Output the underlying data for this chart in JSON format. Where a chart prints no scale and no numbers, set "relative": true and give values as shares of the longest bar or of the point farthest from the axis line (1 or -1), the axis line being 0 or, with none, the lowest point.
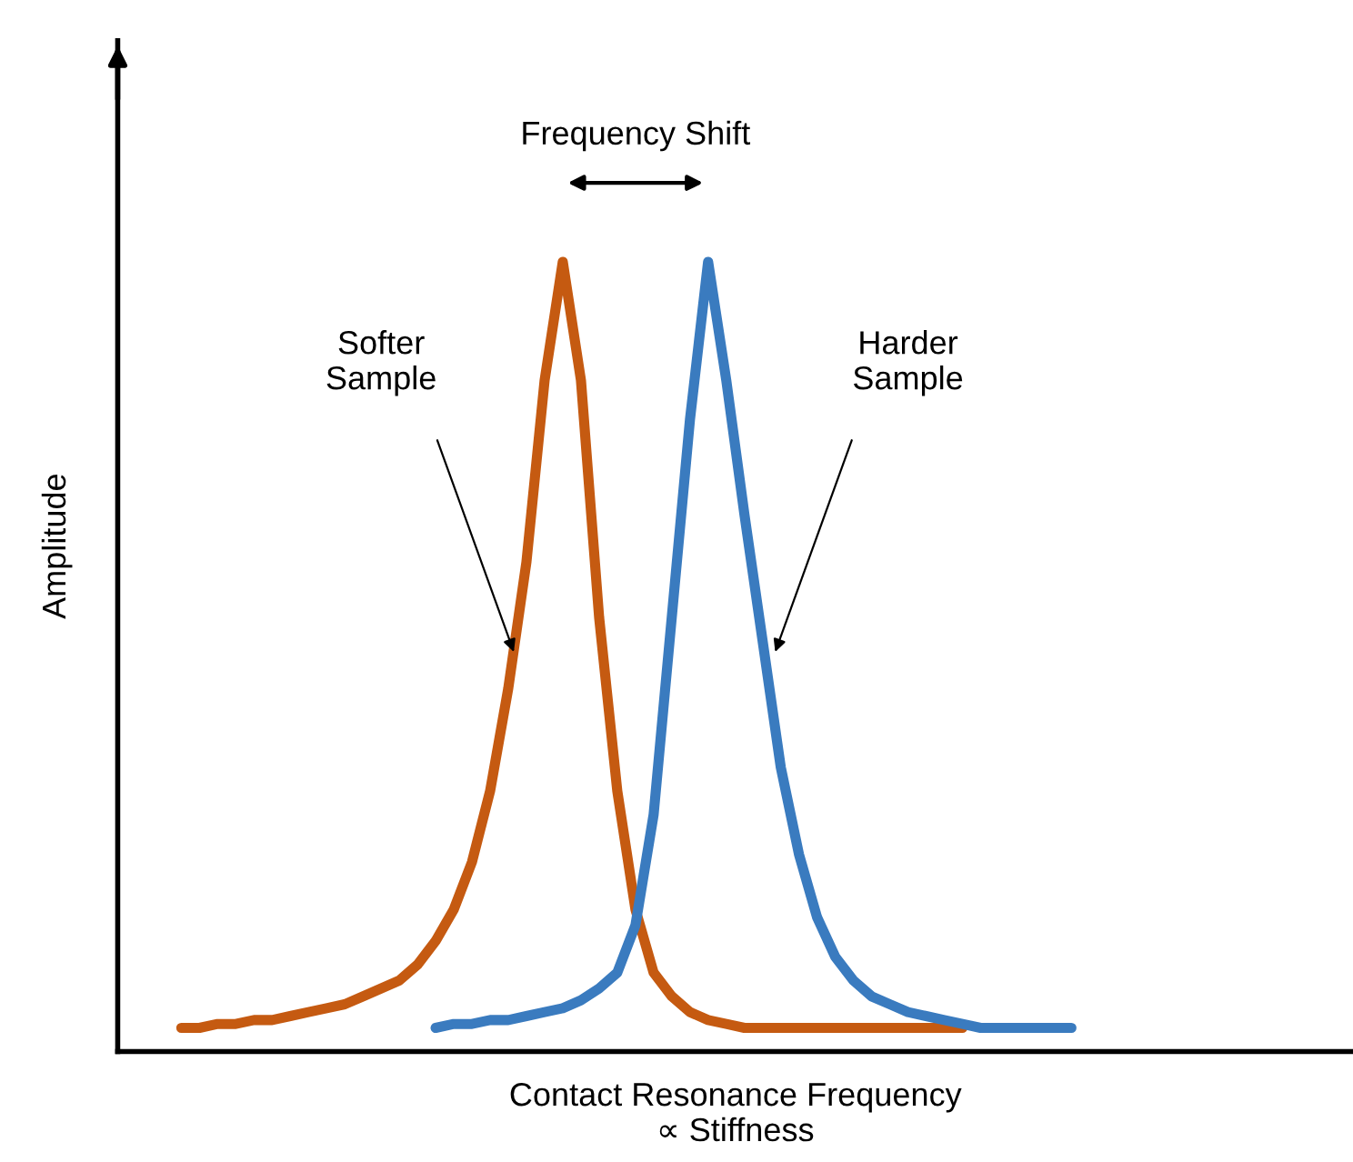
{
  "chart_data": {
    "type": "line",
    "relative": true,
    "xlabel": "Contact Resonance Frequency\n∝ Stiffness",
    "ylabel": "Amplitude",
    "categories": [
      null,
      null,
      null,
      null,
      null,
      null,
      null,
      null,
      null,
      null,
      null,
      null,
      null,
      null,
      null,
      null,
      null,
      null,
      null,
      null,
      null,
      null,
      null,
      null,
      null,
      null,
      null,
      null,
      null,
      null,
      null,
      null,
      null,
      null,
      null,
      null,
      null,
      null,
      null,
      null,
      null,
      null,
      null,
      null,
      null,
      null,
      null,
      null,
      null,
      null
    ],
    "series": [
      {
        "color": "#c55a11",
        "values": [
          0.03,
          0.03,
          0.035,
          0.035,
          0.04,
          0.04,
          0.045,
          0.05,
          0.055,
          0.06,
          0.07,
          0.08,
          0.09,
          0.11,
          0.14,
          0.18,
          0.24,
          0.33,
          0.46,
          0.62,
          0.85,
          1.0,
          0.85,
          0.55,
          0.33,
          0.18,
          0.1,
          0.07,
          0.05,
          0.04,
          0.035,
          0.03,
          0.03,
          0.03,
          0.03,
          0.03,
          0.03,
          0.03,
          0.03,
          0.03,
          0.03,
          0.03,
          0.03,
          0.03,
          null,
          null,
          null,
          null,
          null,
          null
        ]
      },
      {
        "color": "#3a7bbf",
        "values": [
          null,
          null,
          null,
          null,
          null,
          null,
          null,
          null,
          null,
          null,
          null,
          null,
          null,
          null,
          0.03,
          0.035,
          0.035,
          0.04,
          0.04,
          0.045,
          0.05,
          0.055,
          0.065,
          0.08,
          0.1,
          0.16,
          0.3,
          0.55,
          0.8,
          1.0,
          0.85,
          0.68,
          0.52,
          0.36,
          0.25,
          0.17,
          0.12,
          0.09,
          0.07,
          0.06,
          0.05,
          0.045,
          0.04,
          0.035,
          0.03,
          0.03,
          0.03,
          0.03,
          0.03,
          0.03
        ]
      }
    ],
    "annotations": [
      "Frequency Shift",
      "Softer\nSample",
      "Harder\nSample"
    ],
    "legend": false,
    "marker": "none",
    "line_style": "solid"
  }
}
